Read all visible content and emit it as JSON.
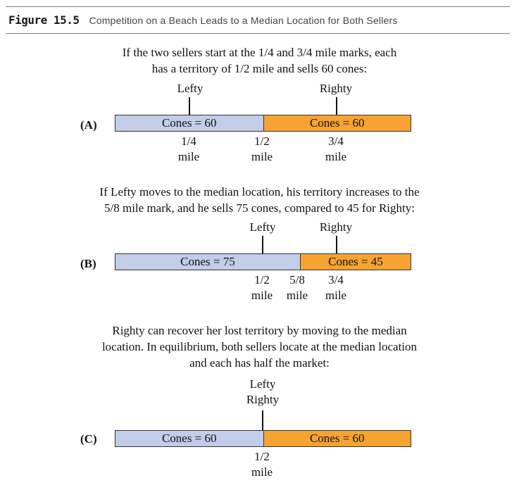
{
  "figure": {
    "number": "Figure 15.5",
    "title": "Competition on a Beach Leads to a Median Location for Both Sellers"
  },
  "colors": {
    "left_segment": "#c2cdea",
    "right_segment": "#f7a332"
  },
  "panels": {
    "a": {
      "letter": "(A)",
      "caption_line1": "If the two sellers start at the 1/4 and 3/4 mile marks, each",
      "caption_line2": "has a territory of 1/2 mile and sells 60 cones:",
      "seller_left": "Lefty",
      "seller_right": "Righty",
      "left_cones": "Cones = 60",
      "right_cones": "Cones = 60",
      "boundary_fraction": 0.5,
      "marks": [
        {
          "num": "1/4",
          "unit": "mile"
        },
        {
          "num": "1/2",
          "unit": "mile"
        },
        {
          "num": "3/4",
          "unit": "mile"
        }
      ]
    },
    "b": {
      "letter": "(B)",
      "caption_line1": "If Lefty moves to the median location, his territory increases to the",
      "caption_line2": "5/8 mile mark, and he sells 75 cones, compared to 45 for Righty:",
      "seller_left": "Lefty",
      "seller_right": "Righty",
      "left_cones": "Cones = 75",
      "right_cones": "Cones = 45",
      "boundary_fraction": 0.625,
      "marks": [
        {
          "num": "1/2",
          "unit": "mile"
        },
        {
          "num": "5/8",
          "unit": "mile"
        },
        {
          "num": "3/4",
          "unit": "mile"
        }
      ]
    },
    "c": {
      "letter": "(C)",
      "caption_line1": "Righty can recover her lost territory by moving to the median",
      "caption_line2": "location. In equilibrium, both sellers locate at the median location",
      "caption_line3": "and each has half the market:",
      "seller_left": "Lefty",
      "seller_right": "Righty",
      "left_cones": "Cones = 60",
      "right_cones": "Cones = 60",
      "boundary_fraction": 0.5,
      "marks": [
        {
          "num": "1/2",
          "unit": "mile"
        }
      ]
    }
  }
}
